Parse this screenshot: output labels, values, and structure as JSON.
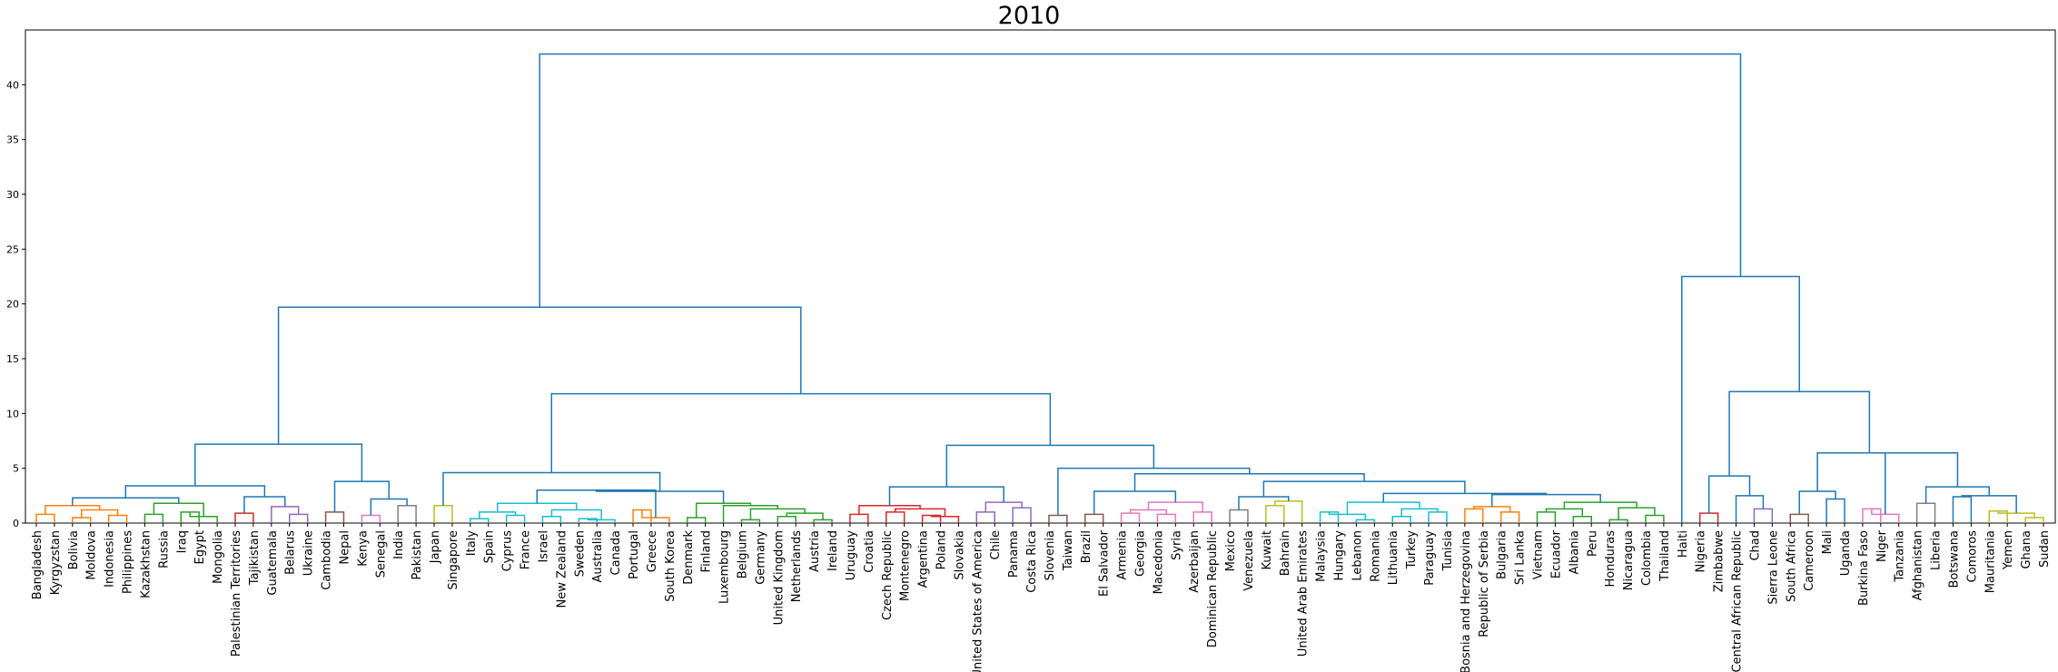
{
  "chart_data": {
    "type": "dendrogram",
    "title": "2010",
    "ylim": [
      0,
      45
    ],
    "yticks": [
      0,
      5,
      10,
      15,
      20,
      25,
      30,
      35,
      40
    ],
    "link_color": "#1f77b4",
    "cluster_colors": {
      "orange": "#ff7f0e",
      "green": "#2ca02c",
      "red": "#d62728",
      "purple": "#9467bd",
      "brown": "#8c564b",
      "pink": "#e377c2",
      "gray": "#7f7f7f",
      "olive": "#bcbd22",
      "cyan": "#17becf"
    },
    "leaves": [
      "Bangladesh",
      "Kyrgyzstan",
      "Bolivia",
      "Moldova",
      "Indonesia",
      "Philippines",
      "Kazakhstan",
      "Russia",
      "Iraq",
      "Egypt",
      "Mongolia",
      "Palestinian Territories",
      "Tajikistan",
      "Guatemala",
      "Belarus",
      "Ukraine",
      "Cambodia",
      "Nepal",
      "Kenya",
      "Senegal",
      "India",
      "Pakistan",
      "Japan",
      "Singapore",
      "Italy",
      "Spain",
      "Cyprus",
      "France",
      "Israel",
      "New Zealand",
      "Sweden",
      "Australia",
      "Canada",
      "Portugal",
      "Greece",
      "South Korea",
      "Denmark",
      "Finland",
      "Luxembourg",
      "Belgium",
      "Germany",
      "United Kingdom",
      "Netherlands",
      "Austria",
      "Ireland",
      "Uruguay",
      "Croatia",
      "Czech Republic",
      "Montenegro",
      "Argentina",
      "Poland",
      "Slovakia",
      "United States of America",
      "Chile",
      "Panama",
      "Costa Rica",
      "Slovenia",
      "Taiwan",
      "Brazil",
      "El Salvador",
      "Armenia",
      "Georgia",
      "Macedonia",
      "Syria",
      "Azerbaijan",
      "Dominican Republic",
      "Mexico",
      "Venezuela",
      "Kuwait",
      "Bahrain",
      "United Arab Emirates",
      "Malaysia",
      "Hungary",
      "Lebanon",
      "Romania",
      "Lithuania",
      "Turkey",
      "Paraguay",
      "Tunisia",
      "Bosnia and Herzegovina",
      "Republic of Serbia",
      "Bulgaria",
      "Sri Lanka",
      "Vietnam",
      "Ecuador",
      "Albania",
      "Peru",
      "Honduras",
      "Nicaragua",
      "Colombia",
      "Thailand",
      "Haiti",
      "Nigeria",
      "Zimbabwe",
      "Central African Republic",
      "Chad",
      "Sierra Leone",
      "South Africa",
      "Cameroon",
      "Mali",
      "Uganda",
      "Burkina Faso",
      "Niger",
      "Tanzania",
      "Afghanistan",
      "Liberia",
      "Botswana",
      "Comoros",
      "Mauritania",
      "Yemen",
      "Ghana",
      "Sudan"
    ],
    "merges": [
      [
        "Bangladesh",
        "Kyrgyzstan",
        0.8,
        "orange",
        "A1"
      ],
      [
        "Bolivia",
        "Moldova",
        0.5,
        "orange",
        "A2"
      ],
      [
        "Indonesia",
        "Philippines",
        0.7,
        "orange",
        "A3"
      ],
      [
        "A2",
        "A3",
        1.2,
        "orange",
        "A4"
      ],
      [
        "A1",
        "A4",
        1.6,
        "orange",
        "A"
      ],
      [
        "Kazakhstan",
        "Russia",
        0.8,
        "green",
        "B1"
      ],
      [
        "Iraq",
        "Egypt",
        1.0,
        "green",
        "B2"
      ],
      [
        "B2",
        "Mongolia",
        0.6,
        "green",
        "B2b"
      ],
      [
        "B1",
        "B2b",
        1.8,
        "green",
        "B"
      ],
      [
        "A",
        "B",
        2.3,
        "link",
        "AB"
      ],
      [
        "Palestinian Territories",
        "Tajikistan",
        0.9,
        "red",
        "C"
      ],
      [
        "Belarus",
        "Ukraine",
        0.8,
        "purple",
        "D1"
      ],
      [
        "Guatemala",
        "D1",
        1.5,
        "purple",
        "D"
      ],
      [
        "C",
        "D",
        2.4,
        "link",
        "CD"
      ],
      [
        "AB",
        "CD",
        3.4,
        "link",
        "L1"
      ],
      [
        "Cambodia",
        "Nepal",
        1.0,
        "brown",
        "E"
      ],
      [
        "Kenya",
        "Senegal",
        0.7,
        "pink",
        "F"
      ],
      [
        "India",
        "Pakistan",
        1.6,
        "gray",
        "G"
      ],
      [
        "F",
        "G",
        2.2,
        "link",
        "FG"
      ],
      [
        "E",
        "FG",
        3.8,
        "link",
        "EFG"
      ],
      [
        "L1",
        "EFG",
        7.2,
        "link",
        "LEFT"
      ],
      [
        "Japan",
        "Singapore",
        1.6,
        "olive",
        "H"
      ],
      [
        "Italy",
        "Spain",
        0.4,
        "cyan",
        "I1"
      ],
      [
        "Cyprus",
        "France",
        0.7,
        "cyan",
        "I2"
      ],
      [
        "I1",
        "I2",
        1.0,
        "cyan",
        "I3"
      ],
      [
        "Israel",
        "New Zealand",
        0.6,
        "cyan",
        "I4"
      ],
      [
        "Sweden",
        "Australia",
        0.4,
        "cyan",
        "I5"
      ],
      [
        "I5",
        "Canada",
        0.3,
        "cyan",
        "I6"
      ],
      [
        "I4",
        "I6",
        1.2,
        "cyan",
        "I7"
      ],
      [
        "I3",
        "I7",
        1.8,
        "cyan",
        "I"
      ],
      [
        "Portugal",
        "Greece",
        1.2,
        "orange",
        "J1"
      ],
      [
        "J1",
        "South Korea",
        0.5,
        "orange",
        "J"
      ],
      [
        "I",
        "J",
        3.0,
        "link",
        "IJ"
      ],
      [
        "Denmark",
        "Finland",
        0.5,
        "green",
        "K1"
      ],
      [
        "Belgium",
        "Germany",
        0.3,
        "green",
        "K2"
      ],
      [
        "United Kingdom",
        "Netherlands",
        0.6,
        "green",
        "K3"
      ],
      [
        "Austria",
        "Ireland",
        0.3,
        "green",
        "K4"
      ],
      [
        "K3",
        "K4",
        0.9,
        "green",
        "K5"
      ],
      [
        "K2",
        "K5",
        1.3,
        "green",
        "K6"
      ],
      [
        "Luxembourg",
        "K6",
        1.6,
        "green",
        "K7"
      ],
      [
        "K1",
        "K7",
        1.8,
        "green",
        "K"
      ],
      [
        "IJ",
        "K",
        2.9,
        "link",
        "IJK"
      ],
      [
        "H",
        "IJK",
        4.6,
        "link",
        "M1"
      ],
      [
        "Uruguay",
        "Croatia",
        0.8,
        "red",
        "R1"
      ],
      [
        "Czech Republic",
        "Montenegro",
        1.0,
        "red",
        "R2"
      ],
      [
        "Argentina",
        "Poland",
        0.7,
        "red",
        "R3"
      ],
      [
        "R3",
        "Slovakia",
        0.6,
        "red",
        "R4"
      ],
      [
        "R2",
        "R4",
        1.3,
        "red",
        "R5"
      ],
      [
        "R1",
        "R5",
        1.6,
        "red",
        "R"
      ],
      [
        "United States of America",
        "Chile",
        1.0,
        "purple",
        "P1"
      ],
      [
        "Panama",
        "Costa Rica",
        1.4,
        "purple",
        "P2"
      ],
      [
        "P1",
        "P2",
        1.9,
        "purple",
        "P"
      ],
      [
        "R",
        "P",
        3.3,
        "link",
        "RP"
      ],
      [
        "Slovenia",
        "Taiwan",
        0.7,
        "brown",
        "S"
      ],
      [
        "Brazil",
        "El Salvador",
        0.8,
        "brown",
        "T"
      ],
      [
        "Armenia",
        "Georgia",
        0.9,
        "pink",
        "U1"
      ],
      [
        "Macedonia",
        "Syria",
        0.8,
        "pink",
        "U2"
      ],
      [
        "Azerbaijan",
        "Dominican Republic",
        1.0,
        "pink",
        "U3"
      ],
      [
        "U1",
        "U2",
        1.2,
        "pink",
        "U4"
      ],
      [
        "U4",
        "U3",
        1.9,
        "pink",
        "U"
      ],
      [
        "T",
        "U",
        2.9,
        "link",
        "TU"
      ],
      [
        "Mexico",
        "Venezuela",
        1.2,
        "gray",
        "V"
      ],
      [
        "Kuwait",
        "Bahrain",
        1.6,
        "olive",
        "W1"
      ],
      [
        "W1",
        "United Arab Emirates",
        2.0,
        "olive",
        "W"
      ],
      [
        "V",
        "W",
        2.4,
        "link",
        "VW"
      ],
      [
        "Malaysia",
        "Hungary",
        1.0,
        "cyan",
        "X1"
      ],
      [
        "Lebanon",
        "Romania",
        0.3,
        "cyan",
        "X2"
      ],
      [
        "X1",
        "X2",
        0.8,
        "cyan",
        "X3"
      ],
      [
        "Lithuania",
        "Turkey",
        0.6,
        "cyan",
        "X4"
      ],
      [
        "Paraguay",
        "Tunisia",
        1.0,
        "cyan",
        "X5"
      ],
      [
        "X4",
        "X5",
        1.3,
        "cyan",
        "X6"
      ],
      [
        "X3",
        "X6",
        1.9,
        "cyan",
        "X"
      ],
      [
        "Bosnia and Herzegovina",
        "Republic of Serbia",
        1.3,
        "orange",
        "Y1"
      ],
      [
        "Bulgaria",
        "Sri Lanka",
        1.0,
        "orange",
        "Y2"
      ],
      [
        "Y1",
        "Y2",
        1.5,
        "orange",
        "Y"
      ],
      [
        "Vietnam",
        "Ecuador",
        1.0,
        "green",
        "Z1"
      ],
      [
        "Albania",
        "Peru",
        0.6,
        "green",
        "Z2"
      ],
      [
        "Z1",
        "Z2",
        1.3,
        "green",
        "Z3"
      ],
      [
        "Honduras",
        "Nicaragua",
        0.3,
        "green",
        "Z4"
      ],
      [
        "Colombia",
        "Thailand",
        0.7,
        "green",
        "Z5"
      ],
      [
        "Z4",
        "Z5",
        1.4,
        "green",
        "Z6"
      ],
      [
        "Z3",
        "Z6",
        1.9,
        "green",
        "Z"
      ],
      [
        "Y",
        "Z",
        2.6,
        "link",
        "YZ"
      ],
      [
        "X",
        "YZ",
        2.7,
        "link",
        "XYZ"
      ],
      [
        "VW",
        "XYZ",
        3.8,
        "link",
        "VXYZ"
      ],
      [
        "TU",
        "VXYZ",
        4.5,
        "link",
        "TUVXYZ"
      ],
      [
        "S",
        "TUVXYZ",
        5.0,
        "link",
        "STUVXYZ"
      ],
      [
        "RP",
        "STUVXYZ",
        7.1,
        "link",
        "M2"
      ],
      [
        "M1",
        "M2",
        11.8,
        "link",
        "MID"
      ],
      [
        "LEFT",
        "MID",
        19.7,
        "link",
        "BIG"
      ],
      [
        "Nigeria",
        "Zimbabwe",
        0.9,
        "red",
        "AA"
      ],
      [
        "Chad",
        "Sierra Leone",
        1.3,
        "purple",
        "AB1"
      ],
      [
        "Central African Republic",
        "AB1",
        2.5,
        "link",
        "AB2"
      ],
      [
        "AA",
        "AB2",
        4.3,
        "link",
        "AC"
      ],
      [
        "South Africa",
        "Cameroon",
        0.8,
        "brown",
        "AD1"
      ],
      [
        "Mali",
        "Uganda",
        2.2,
        "link",
        "AD2"
      ],
      [
        "AD1",
        "AD2",
        2.9,
        "link",
        "AD"
      ],
      [
        "Burkina Faso",
        "Niger",
        1.3,
        "pink",
        "AE1"
      ],
      [
        "AE1",
        "Tanzania",
        0.8,
        "pink",
        "AE"
      ],
      [
        "Afghanistan",
        "Liberia",
        1.8,
        "gray",
        "AF"
      ],
      [
        "Botswana",
        "Comoros",
        2.4,
        "link",
        "AG1"
      ],
      [
        "Mauritania",
        "Yemen",
        1.1,
        "olive",
        "AH1"
      ],
      [
        "Ghana",
        "Sudan",
        0.5,
        "olive",
        "AH2"
      ],
      [
        "AH1",
        "AH2",
        0.9,
        "olive",
        "AH"
      ],
      [
        "AG1",
        "AH",
        2.5,
        "link",
        "AG"
      ],
      [
        "AF",
        "AG",
        3.3,
        "link",
        "AFG"
      ],
      [
        "AE",
        "AFG",
        6.4,
        "link",
        "AEFG"
      ],
      [
        "AD",
        "AEFG",
        6.4,
        "link",
        "ADG"
      ],
      [
        "AC",
        "ADG",
        12.0,
        "link",
        "AFR"
      ],
      [
        "Haiti",
        "AFR",
        22.5,
        "link",
        "RIGHT"
      ],
      [
        "BIG",
        "RIGHT",
        42.8,
        "link",
        "ROOT"
      ]
    ]
  }
}
